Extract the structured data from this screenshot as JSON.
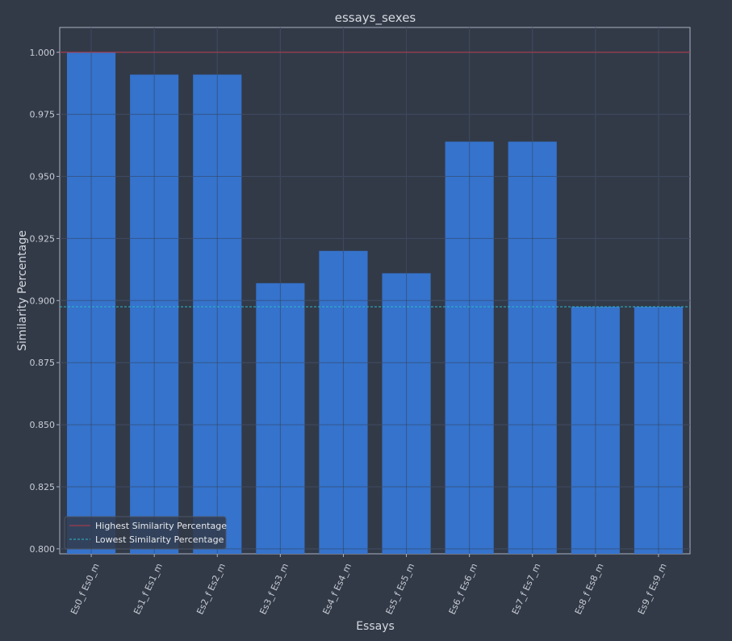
{
  "chart_data": {
    "type": "bar",
    "title": "essays_sexes",
    "xlabel": "Essays",
    "ylabel": "Similarity Percentage",
    "categories": [
      "Es0_f Es0_m",
      "Es1_f Es1_m",
      "Es2_f Es2_m",
      "Es3_f Es3_m",
      "Es4_f Es4_m",
      "Es5_f Es5_m",
      "Es6_f Es6_m",
      "Es7_f Es7_m",
      "Es8_f Es8_m",
      "Es9_f Es9_m"
    ],
    "values": [
      1.0,
      0.991,
      0.991,
      0.907,
      0.92,
      0.911,
      0.964,
      0.964,
      0.8975,
      0.8975
    ],
    "ylim": [
      0.798,
      1.01
    ],
    "yticks": [
      "0.800",
      "0.825",
      "0.850",
      "0.875",
      "0.900",
      "0.925",
      "0.950",
      "0.975",
      "1.000"
    ],
    "grid": true,
    "bar_color": "#3573cc",
    "reference_lines": [
      {
        "name": "Highest Similarity Percentage",
        "value": 1.0,
        "color": "#b83a4a",
        "style": "solid"
      },
      {
        "name": "Lowest Similarity Percentage",
        "value": 0.8975,
        "color": "#2ab8c8",
        "style": "dashed"
      }
    ],
    "legend_location": "lower-left"
  }
}
